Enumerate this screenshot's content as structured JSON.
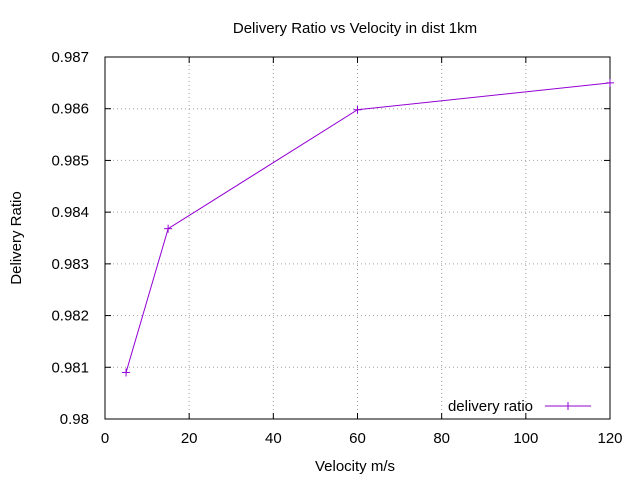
{
  "chart_data": {
    "type": "line",
    "title": "Delivery Ratio vs Velocity in dist 1km",
    "xlabel": "Velocity m/s",
    "ylabel": "Delivery Ratio",
    "xlim": [
      0,
      120
    ],
    "ylim": [
      0.98,
      0.987
    ],
    "xticks": [
      0,
      20,
      40,
      60,
      80,
      100,
      120
    ],
    "xtick_labels": [
      "0",
      "20",
      "40",
      "60",
      "80",
      "100",
      "120"
    ],
    "yticks": [
      0.98,
      0.981,
      0.982,
      0.983,
      0.984,
      0.985,
      0.986,
      0.987
    ],
    "ytick_labels": [
      "0.98",
      "0.981",
      "0.982",
      "0.983",
      "0.984",
      "0.985",
      "0.986",
      "0.987"
    ],
    "grid": true,
    "legend_position": "bottom-right",
    "series": [
      {
        "name": "delivery ratio",
        "color": "#9400d3",
        "marker": "plus",
        "x": [
          5,
          15,
          60,
          120
        ],
        "y": [
          0.9809,
          0.98368,
          0.98598,
          0.9865
        ]
      }
    ]
  }
}
